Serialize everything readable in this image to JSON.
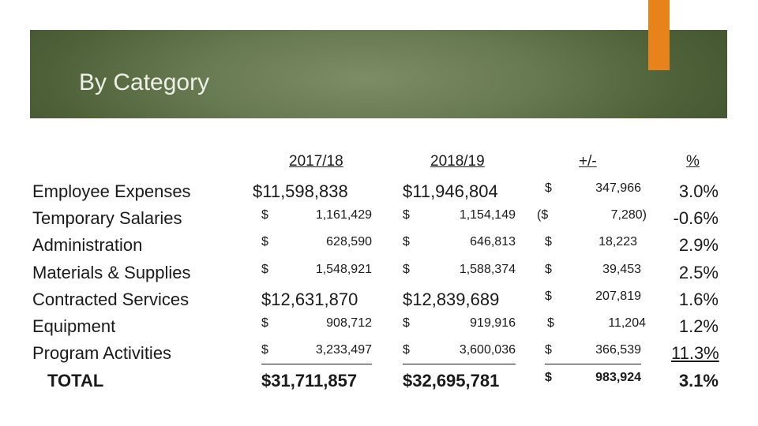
{
  "slide": {
    "title": "By Category"
  },
  "accent_color": "#e8821a",
  "banner_color": "#5f7046",
  "table": {
    "headers": [
      "2017/18",
      "2018/19",
      "+/-",
      "%"
    ],
    "rows": [
      {
        "label": "Employee Expenses",
        "y1": "$11,598,838",
        "y2": "$11,946,804",
        "diff_sym": "$",
        "diff": "347,966",
        "pct": "3.0%"
      },
      {
        "label": "Temporary Salaries",
        "y1_sym": "$",
        "y1": "1,161,429",
        "y2_sym": "$",
        "y2": "1,154,149",
        "diff_sym": "($",
        "diff": "7,280)",
        "pct": "-0.6%"
      },
      {
        "label": "Administration",
        "y1_sym": "$",
        "y1": "628,590",
        "y2_sym": "$",
        "y2": "646,813",
        "diff_sym": "$",
        "diff": "18,223",
        "pct": "2.9%"
      },
      {
        "label": "Materials & Supplies",
        "y1_sym": "$",
        "y1": "1,548,921",
        "y2_sym": "$",
        "y2": "1,588,374",
        "diff_sym": "$",
        "diff": "39,453",
        "pct": "2.5%"
      },
      {
        "label": "Contracted Services",
        "y1": "$12,631,870",
        "y2": "$12,839,689",
        "diff_sym": "$",
        "diff": "207,819",
        "pct": "1.6%"
      },
      {
        "label": "Equipment",
        "y1_sym": "$",
        "y1": "908,712",
        "y2_sym": "$",
        "y2": "919,916",
        "diff_sym": "$",
        "diff": "11,204",
        "pct": "1.2%"
      },
      {
        "label": "Program Activities",
        "y1_sym": "$",
        "y1": "3,233,497",
        "y2_sym": "$",
        "y2": "3,600,036",
        "diff_sym": "$",
        "diff": "366,539",
        "pct": "11.3%"
      },
      {
        "label": "TOTAL",
        "y1": "$31,711,857",
        "y2": "$32,695,781",
        "diff_sym": "$",
        "diff": "983,924",
        "pct": "3.1%"
      }
    ]
  }
}
